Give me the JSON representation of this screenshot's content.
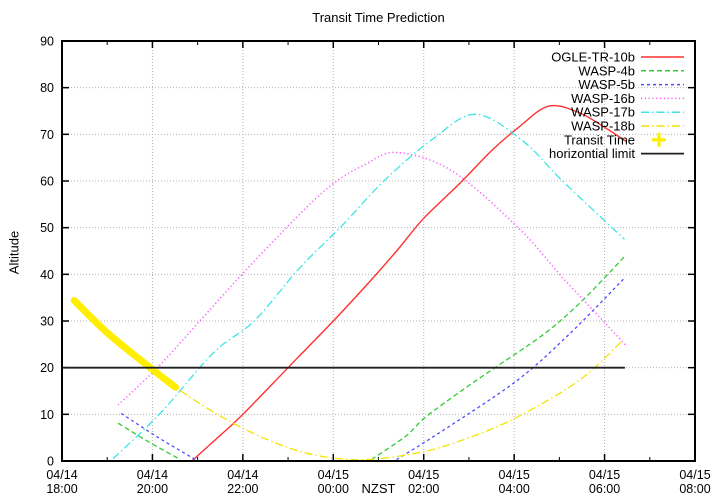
{
  "title": "Transit Time Prediction",
  "axes": {
    "xlabel": "NZST",
    "ylabel": "Altitude",
    "y_range": [
      0,
      90
    ],
    "x_range_hours": [
      0,
      14
    ],
    "x_unit": "hours after 04/14 18:00 NZST",
    "grid": "dotted gray at every major tick",
    "x_ticks": [
      {
        "t": 0,
        "date": "04/14",
        "time": "18:00"
      },
      {
        "t": 2,
        "date": "04/14",
        "time": "20:00"
      },
      {
        "t": 4,
        "date": "04/14",
        "time": "22:00"
      },
      {
        "t": 6,
        "date": "04/15",
        "time": "00:00"
      },
      {
        "t": 8,
        "date": "04/15",
        "time": "02:00"
      },
      {
        "t": 10,
        "date": "04/15",
        "time": "04:00"
      },
      {
        "t": 12,
        "date": "04/15",
        "time": "06:00"
      },
      {
        "t": 14,
        "date": "04/15",
        "time": "08:00"
      }
    ],
    "y_ticks": [
      0,
      10,
      20,
      30,
      40,
      50,
      60,
      70,
      80,
      90
    ]
  },
  "legend": {
    "position": "top-right-inside",
    "items": [
      {
        "label": "OGLE-TR-10b",
        "color": "#ff3030",
        "sample": "line",
        "dash": ""
      },
      {
        "label": "WASP-4b",
        "color": "#33cc33",
        "sample": "line",
        "dash": "5,3"
      },
      {
        "label": "WASP-5b",
        "color": "#4d4dff",
        "sample": "line",
        "dash": "3,3"
      },
      {
        "label": "WASP-16b",
        "color": "#ff55ff",
        "sample": "line",
        "dash": "1.2,2.6"
      },
      {
        "label": "WASP-17b",
        "color": "#3de4e4",
        "sample": "line",
        "dash": "8,3,1.5,3"
      },
      {
        "label": "WASP-18b",
        "color": "#f4e400",
        "sample": "line",
        "dash": "8,3,1.5,3"
      },
      {
        "label": "Transit Time",
        "color": "#ffee00",
        "sample": "plus",
        "dash": ""
      },
      {
        "label": "horizontial limit",
        "color": "#202020",
        "sample": "line",
        "dash": ""
      }
    ]
  },
  "chart_data": {
    "type": "line",
    "x_unit": "hours after 04/14 18:00 NZST",
    "note": "altitude (degrees) of exoplanet host stars vs local time; points read from plot",
    "series": [
      {
        "name": "OGLE-TR-10b",
        "color": "#ff3030",
        "dash": "",
        "width": 1.4,
        "cap": "butt",
        "segments": [
          [
            [
              2.87,
              0
            ],
            [
              3.5,
              5.5
            ],
            [
              4.0,
              10
            ],
            [
              5.2,
              22
            ],
            [
              6.0,
              30
            ],
            [
              6.7,
              37.3
            ],
            [
              7.4,
              45
            ],
            [
              8.0,
              52
            ],
            [
              8.8,
              59.5
            ],
            [
              9.5,
              66.5
            ],
            [
              10.1,
              71.5
            ],
            [
              10.75,
              76
            ],
            [
              11.4,
              74.8
            ],
            [
              12.0,
              71.5
            ],
            [
              12.47,
              68.5
            ]
          ]
        ]
      },
      {
        "name": "WASP-4b",
        "color": "#33cc33",
        "dash": "5,3",
        "width": 1.3,
        "cap": "butt",
        "segments": [
          [
            [
              1.24,
              8.1
            ],
            [
              1.9,
              4.2
            ],
            [
              2.62,
              0.3
            ]
          ],
          [
            [
              6.84,
              0.3
            ],
            [
              7.6,
              5.3
            ],
            [
              8.04,
              9.4
            ],
            [
              8.9,
              15.5
            ],
            [
              9.73,
              21
            ],
            [
              10.7,
              27.5
            ],
            [
              11.51,
              34.4
            ],
            [
              12.47,
              44.1
            ]
          ]
        ]
      },
      {
        "name": "WASP-5b",
        "color": "#4d4dff",
        "dash": "3,3",
        "width": 1.3,
        "cap": "butt",
        "segments": [
          [
            [
              1.31,
              10.2
            ],
            [
              2.1,
              5.2
            ],
            [
              2.95,
              0.3
            ]
          ],
          [
            [
              7.4,
              0.3
            ],
            [
              8.5,
              7
            ],
            [
              10.07,
              17.3
            ],
            [
              11.2,
              27
            ],
            [
              12.44,
              39.2
            ]
          ]
        ]
      },
      {
        "name": "WASP-16b",
        "color": "#ff55ff",
        "dash": "1.2,2.6",
        "width": 1.5,
        "cap": "butt",
        "segments": [
          [
            [
              1.24,
              12
            ],
            [
              2.11,
              20
            ],
            [
              3.02,
              29.7
            ],
            [
              4.0,
              40.2
            ],
            [
              5.29,
              53.2
            ],
            [
              6.02,
              59.6
            ],
            [
              6.7,
              63.5
            ],
            [
              7.4,
              66.1
            ],
            [
              8.62,
              62.2
            ],
            [
              10.11,
              49.8
            ],
            [
              11.07,
              39.3
            ],
            [
              12.02,
              29.5
            ],
            [
              12.47,
              24.8
            ]
          ]
        ]
      },
      {
        "name": "WASP-17b",
        "color": "#3de4e4",
        "dash": "8,3,1.5,3",
        "width": 1.3,
        "cap": "butt",
        "segments": [
          [
            [
              1.13,
              0.5
            ],
            [
              2.18,
              10.3
            ],
            [
              3.36,
              23.3
            ],
            [
              4.25,
              30
            ],
            [
              5.25,
              41.3
            ],
            [
              6.2,
              50.5
            ],
            [
              7.13,
              60.1
            ],
            [
              8.2,
              69
            ],
            [
              9.15,
              74.3
            ],
            [
              10.2,
              68.5
            ],
            [
              11.07,
              60
            ],
            [
              12.44,
              47.5
            ]
          ]
        ]
      },
      {
        "name": "WASP-18b",
        "color": "#f4e400",
        "dash": "8,3,1.5,3",
        "width": 1.3,
        "cap": "butt",
        "segments": [
          [
            [
              0.27,
              34.4
            ],
            [
              1.0,
              27.5
            ],
            [
              1.95,
              20
            ],
            [
              2.51,
              15.8
            ],
            [
              3.47,
              9.8
            ],
            [
              4.56,
              4.5
            ],
            [
              5.58,
              1.3
            ],
            [
              6.7,
              0.3
            ],
            [
              8.0,
              2
            ],
            [
              9.0,
              5
            ],
            [
              10.07,
              9.4
            ],
            [
              11.44,
              17.3
            ],
            [
              12.42,
              26
            ]
          ]
        ]
      },
      {
        "name": "Transit Time",
        "color": "#ffee00",
        "dash": "",
        "width": 7,
        "cap": "round",
        "segments": [
          [
            [
              0.27,
              34.4
            ],
            [
              1.0,
              27.5
            ],
            [
              1.95,
              20
            ],
            [
              2.51,
              15.8
            ]
          ]
        ]
      },
      {
        "name": "horizontial limit",
        "color": "#202020",
        "dash": "",
        "width": 1.8,
        "cap": "butt",
        "segments": [
          [
            [
              0,
              20
            ],
            [
              12.45,
              20
            ]
          ]
        ]
      }
    ]
  },
  "style": {
    "background": "#ffffff",
    "grid_color": "#b4b4b4",
    "axis_color": "#000000",
    "transit_marker_color": "#ffee00"
  }
}
